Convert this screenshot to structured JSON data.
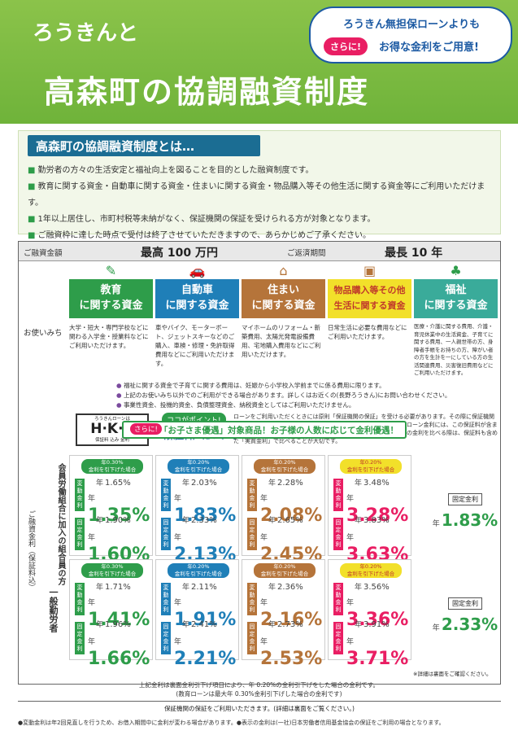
{
  "header": {
    "tagline": "ろうきんと",
    "title": "高森町の協調融資制度",
    "bubble": {
      "line1": "ろうきん無担保ローンよりも",
      "badge": "さらに!",
      "line2": "お得な金利をご用意!"
    }
  },
  "intro": {
    "heading": "高森町の協調融資制度とは…",
    "items": [
      "勤労者の方々の生活安定と福祉向上を図ることを目的とした融資制度です。",
      "教育に関する資金・自動車に関する資金・住まいに関する資金・物品購入等その他生活に関する資金等にご利用いただけます。",
      "1年以上居住し、市町村税等未納がなく、保証機関の保証を受けられる方が対象となります。",
      "ご融資枠に達した時点で受付は終了させていただきますので、あらかじめご了承ください。"
    ]
  },
  "table": {
    "amount_label": "ご融資金額",
    "amount_value": "最高 100 万円",
    "period_label": "ご返済期間",
    "period_value": "最長 10 年",
    "usage_label": "お使いみち",
    "categories": [
      {
        "title1": "教育",
        "title2": "に関する資金",
        "color": "#2e9d4a",
        "icon": "book-icon",
        "desc": "大学・短大・専門学校などに関わる入学金・授業料などにご利用いただけます。"
      },
      {
        "title1": "自動車",
        "title2": "に関する資金",
        "color": "#1f7fb8",
        "icon": "car-icon",
        "desc": "車やバイク、モーターボート、ジェットスキーなどのご購入、車検・修理・免許取得費用などにご利用いただけます。"
      },
      {
        "title1": "住まい",
        "title2": "に関する資金",
        "color": "#b5743a",
        "icon": "house-icon",
        "desc": "マイホームのリフォーム・新築費用、太陽光発電設備費用、宅地購入費用などにご利用いただけます。"
      },
      {
        "title1": "物品購入等その他",
        "title2": "生活に関する資金",
        "color": "#f2e02a",
        "icon": "bag-icon",
        "desc": "日常生活に必要な費用などにご利用いただけます。"
      },
      {
        "title1": "福祉",
        "title2": "に関する資金",
        "color": "#3aab9a",
        "icon": "clover-icon",
        "desc": "医療・介護に関する費用、介護・育児休業中の生活資金、子育てに関する費用、一人親世帯の方、身障者手帳をお持ちの方、障がい者の方を生計を一にしている方の生活関連費用、災害復旧費用などにご利用いただけます。"
      }
    ],
    "notes": [
      "福祉に関する資金で子育てに関する費用は、妊娠から小学校入学前までに係る費用に限ります。",
      "上記のお使いみち以外でのご利用ができる場合があります。詳しくはお近くの(長野ろうきん)にお問い合わせください。",
      "事業性資金、投機的資金、負債整理資金、納税資金としてはご利用いただけません。"
    ],
    "hkk": {
      "top": "ろうきんローンは",
      "main": "H·K·K",
      "sub": "保証料 込み 金利"
    },
    "point_badge": "ココがポイント!",
    "hosho_label": "〈保証料〉について",
    "hosho_text": "ローンをご利用いただくときには原則「保証機関の保証」を受ける必要があります。その際に保証機関へ支払う費用を「保証料」といいます。チラシやCMなどで目にするローン金利には、この保証料が含まれているものと含まれていないものがあるのをご存じですか?ローンの金利を比べる際は、保証料も含めた「実質金利」で比べることが大切です。",
    "rate_label": "ご融資金利（保証料込）",
    "group1_label": "会員労働組合に加入の組合員の方",
    "group2_label": "一般勤労者",
    "hendo": "変動金利",
    "kotei": "固定金利",
    "year": "年",
    "group1_rates": [
      {
        "badge1": "年0.30%",
        "badge2": "金利を引下げた場合",
        "v_old": "1.65%",
        "v_new": "1.35%",
        "f_old": "1.90%",
        "f_new": "1.60%"
      },
      {
        "badge1": "年0.20%",
        "badge2": "金利を引下げた場合",
        "v_old": "2.03%",
        "v_new": "1.83%",
        "f_old": "2.33%",
        "f_new": "2.13%"
      },
      {
        "badge1": "年0.20%",
        "badge2": "金利を引下げた場合",
        "v_old": "2.28%",
        "v_new": "2.08%",
        "f_old": "2.65%",
        "f_new": "2.45%"
      },
      {
        "badge1": "年0.20%",
        "badge2": "金利を引下げた場合",
        "v_old": "3.48%",
        "v_new": "3.28%",
        "f_old": "3.83%",
        "f_new": "3.63%"
      }
    ],
    "group2_rates": [
      {
        "badge1": "年0.30%",
        "badge2": "金利を引下げた場合",
        "v_old": "1.71%",
        "v_new": "1.41%",
        "f_old": "1.96%",
        "f_new": "1.66%"
      },
      {
        "badge1": "年0.20%",
        "badge2": "金利を引下げた場合",
        "v_old": "2.11%",
        "v_new": "1.91%",
        "f_old": "2.41%",
        "f_new": "2.21%"
      },
      {
        "badge1": "年0.20%",
        "badge2": "金利を引下げた場合",
        "v_old": "2.36%",
        "v_new": "2.16%",
        "f_old": "2.73%",
        "f_new": "2.53%"
      },
      {
        "badge1": "年0.20%",
        "badge2": "金利を引下げた場合",
        "v_old": "3.56%",
        "v_new": "3.36%",
        "f_old": "3.91%",
        "f_new": "3.71%"
      }
    ],
    "fixed_label": "固定金利",
    "fixed1": "1.83%",
    "fixed2": "2.33%",
    "sarani": "さらに!",
    "kids_text": "「お子さま優遇」対象商品！お子様の人数に応じて金利優遇！",
    "kids_note": "※詳細は裏面をご確認ください。",
    "badge_colors": [
      "#2e9d4a",
      "#1f7fb8",
      "#b5743a",
      "#f2e02a"
    ],
    "rate_colors": [
      "#2e9d4a",
      "#1f7fb8",
      "#b5743a",
      "#e91e63"
    ]
  },
  "footer": {
    "line1": "上記金利は裏面金利引下げ項目により、年 0.20%の金利引下げをした場合の金利です。",
    "line2": "(教育ローンは最大年 0.30%金利引下げした場合の金利です)",
    "line3": "保証機関の保証をご利用いただきます。(詳細は裏面をご覧ください。)",
    "line4": "●変動金利は年2回見直しを行うため、お借入期間中に金利が変わる場合があります。●表示の金利は(一社)日本労働者信用基金協会の保証をご利用の場合となります。"
  }
}
